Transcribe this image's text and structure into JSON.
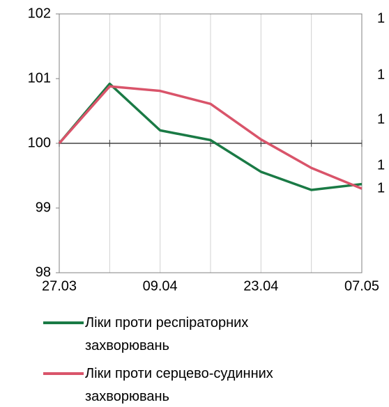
{
  "chart_data": {
    "type": "line",
    "categories": [
      "27.03",
      null,
      "09.04",
      null,
      "23.04",
      null,
      "07.05"
    ],
    "series": [
      {
        "name": "Ліки проти респіраторних захворювань",
        "color": "#1a7a45",
        "values": [
          100,
          100.92,
          100.2,
          100.05,
          99.56,
          99.28,
          99.37
        ]
      },
      {
        "name": "Ліки проти серцево-судинних захворювань",
        "color": "#d9546a",
        "values": [
          100,
          100.88,
          100.81,
          100.61,
          100.06,
          99.62,
          99.3
        ]
      }
    ],
    "ylim": [
      98,
      102
    ],
    "yticks": [
      98,
      99,
      100,
      101,
      102
    ],
    "baseline": 100,
    "right_axis_labels": [
      "1",
      "1",
      "1",
      "1",
      "1"
    ],
    "grid": "vertical",
    "legend": "bottom"
  }
}
